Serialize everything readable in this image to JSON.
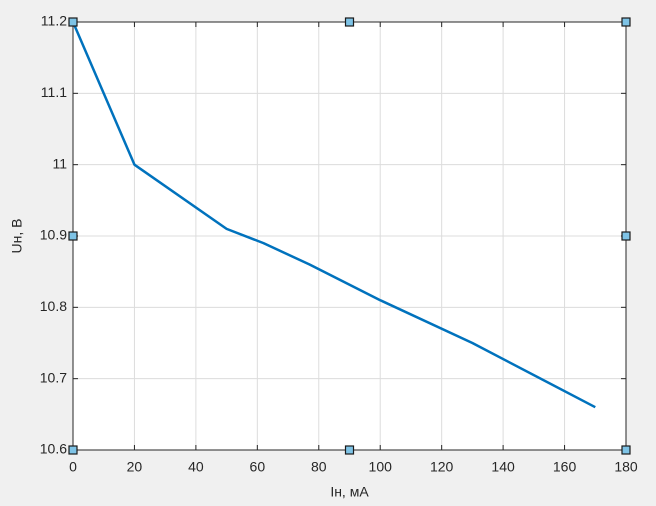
{
  "chart_data": {
    "type": "line",
    "x_label": "Iн, мА",
    "y_label": "Uн, В",
    "x": [
      0,
      20,
      50,
      62,
      77,
      100,
      130,
      170
    ],
    "series": [
      {
        "name": "Uн",
        "color": "#0072bd",
        "values": [
          11.2,
          11.0,
          10.91,
          10.89,
          10.86,
          10.81,
          10.75,
          10.66
        ]
      }
    ],
    "xlim": [
      0,
      180
    ],
    "xticks": [
      0,
      20,
      40,
      60,
      80,
      100,
      120,
      140,
      160,
      180
    ],
    "ylim": [
      10.6,
      11.2
    ],
    "yticks": [
      10.6,
      10.7,
      10.8,
      10.9,
      11,
      11.1,
      11.2
    ],
    "grid": true
  }
}
